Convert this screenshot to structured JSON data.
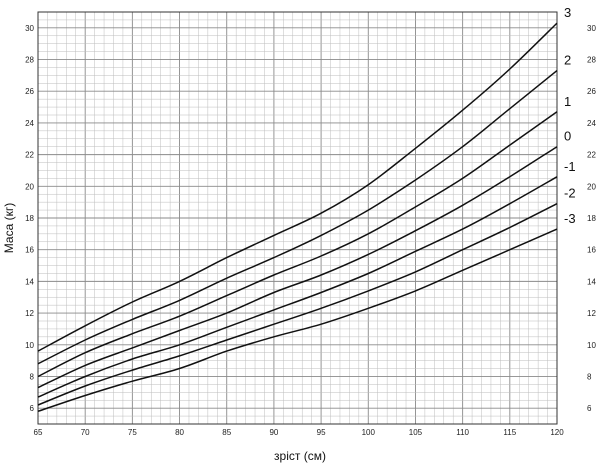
{
  "chart_data": {
    "type": "line",
    "xlabel": "зріст (см)",
    "ylabel": "Маса (кг)",
    "xlim": [
      65,
      120
    ],
    "ylim": [
      5,
      31
    ],
    "x_ticks": [
      "65",
      "70",
      "75",
      "80",
      "85",
      "90",
      "95",
      "100",
      "105",
      "110",
      "115",
      "120"
    ],
    "y_ticks_left": [
      "6",
      "8",
      "10",
      "12",
      "14",
      "16",
      "18",
      "20",
      "22",
      "24",
      "26",
      "28",
      "30"
    ],
    "y_ticks_right": [
      "6",
      "8",
      "10",
      "12",
      "14",
      "16",
      "18",
      "20",
      "22",
      "24",
      "26",
      "28",
      "30"
    ],
    "grid": true,
    "line_color": "#111111",
    "grid_color": "#bdbdbd",
    "x": [
      65,
      70,
      75,
      80,
      85,
      90,
      95,
      100,
      105,
      110,
      115,
      120
    ],
    "series": [
      {
        "name": "3",
        "values": [
          9.6,
          11.2,
          12.7,
          14.0,
          15.5,
          16.9,
          18.3,
          20.1,
          22.4,
          24.8,
          27.4,
          30.3
        ]
      },
      {
        "name": "2",
        "values": [
          8.8,
          10.3,
          11.6,
          12.8,
          14.2,
          15.5,
          16.9,
          18.5,
          20.4,
          22.5,
          24.9,
          27.3
        ]
      },
      {
        "name": "1",
        "values": [
          8.0,
          9.5,
          10.7,
          11.8,
          13.1,
          14.4,
          15.6,
          17.0,
          18.7,
          20.5,
          22.6,
          24.7
        ]
      },
      {
        "name": "0",
        "values": [
          7.3,
          8.7,
          9.8,
          10.9,
          12.0,
          13.3,
          14.4,
          15.7,
          17.2,
          18.8,
          20.6,
          22.5
        ]
      },
      {
        "name": "-1",
        "values": [
          6.7,
          8.0,
          9.1,
          10.0,
          11.1,
          12.2,
          13.3,
          14.5,
          15.9,
          17.3,
          18.9,
          20.6
        ]
      },
      {
        "name": "-2",
        "values": [
          6.2,
          7.4,
          8.4,
          9.3,
          10.3,
          11.3,
          12.3,
          13.4,
          14.6,
          16.0,
          17.4,
          18.9
        ]
      },
      {
        "name": "-3",
        "values": [
          5.8,
          6.8,
          7.7,
          8.5,
          9.6,
          10.5,
          11.3,
          12.3,
          13.4,
          14.7,
          16.0,
          17.3
        ]
      }
    ]
  }
}
